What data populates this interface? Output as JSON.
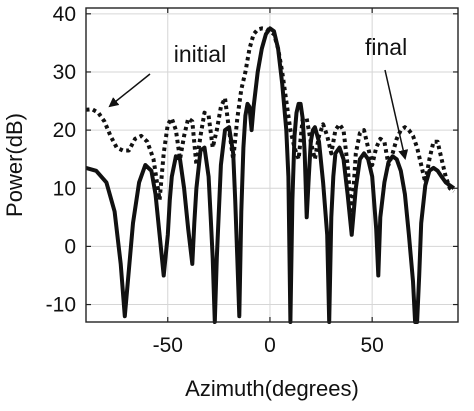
{
  "chart_data": {
    "type": "line",
    "title": "",
    "xlabel": "Azimuth(degrees)",
    "ylabel": "Power(dB)",
    "xlim": [
      -90,
      92
    ],
    "ylim": [
      -13,
      41
    ],
    "xticks": [
      -50,
      0,
      50
    ],
    "yticks": [
      -10,
      0,
      10,
      20,
      30,
      40
    ],
    "xtick_labels": [
      "-50",
      "0",
      "50"
    ],
    "ytick_labels": [
      "-10",
      "0",
      "10",
      "20",
      "30",
      "40"
    ],
    "grid": true,
    "legend": "none",
    "annotations": [
      {
        "text": "initial",
        "series": "dotted",
        "arrow_to": [
          -85,
          23
        ]
      },
      {
        "text": "final",
        "series": "solid",
        "arrow_to": [
          63,
          15
        ]
      }
    ],
    "series": [
      {
        "style": "dotted",
        "color": "#111111",
        "x": [
          -90,
          -87,
          -84,
          -81,
          -78,
          -75,
          -72,
          -69,
          -66,
          -63,
          -60,
          -57,
          -54,
          -52,
          -50,
          -48,
          -46,
          -44,
          -42,
          -40,
          -38,
          -36,
          -34,
          -32,
          -30,
          -28,
          -26,
          -24,
          -22,
          -20,
          -18,
          -16,
          -14,
          -12,
          -10,
          -8,
          -6,
          -4,
          -2,
          0,
          2,
          4,
          6,
          8,
          10,
          12,
          14,
          16,
          18,
          20,
          22,
          24,
          26,
          28,
          30,
          32,
          34,
          36,
          38,
          40,
          42,
          44,
          46,
          48,
          50,
          52,
          54,
          56,
          58,
          60,
          62,
          64,
          66,
          68,
          70,
          72,
          74,
          76,
          78,
          80,
          82,
          84,
          86,
          88,
          90
        ],
        "y": [
          23.5,
          23.6,
          23,
          21.5,
          19,
          17,
          16.5,
          16.5,
          18.5,
          19,
          18,
          15,
          8,
          16,
          21,
          22,
          20,
          15,
          19,
          22,
          21.5,
          14,
          19,
          23,
          22.5,
          17,
          20,
          24,
          25.5,
          20,
          15,
          22,
          27,
          30,
          34,
          36.5,
          37.3,
          37.5,
          37.4,
          37,
          36.5,
          34,
          30,
          25,
          20,
          17,
          15,
          22,
          22,
          18,
          15,
          19,
          21,
          19,
          16,
          20,
          21,
          20,
          14,
          5,
          16,
          19.5,
          20,
          17,
          14,
          17,
          18.5,
          18,
          14,
          16,
          18.5,
          20,
          20.5,
          20,
          19,
          17,
          14,
          11,
          15,
          18,
          18,
          15,
          12,
          10,
          9.5
        ]
      },
      {
        "style": "solid",
        "color": "#111111",
        "x": [
          -90,
          -85,
          -80,
          -76,
          -73,
          -71,
          -69,
          -67,
          -64,
          -61,
          -58,
          -56,
          -54,
          -52,
          -50,
          -49,
          -48,
          -46,
          -44,
          -42,
          -40,
          -38,
          -37,
          -36,
          -34,
          -32,
          -30,
          -29,
          -28,
          -27,
          -26,
          -24,
          -22,
          -20,
          -18,
          -17,
          -16,
          -15,
          -14,
          -13,
          -12,
          -11,
          -10,
          -9,
          -8,
          -6,
          -4,
          -2,
          0,
          2,
          4,
          6,
          8,
          9,
          10,
          11,
          12,
          13,
          14,
          15,
          16,
          17,
          18,
          19,
          20,
          21,
          22,
          24,
          26,
          28,
          29,
          30,
          31,
          32,
          34,
          36,
          38,
          40,
          42,
          44,
          46,
          48,
          50,
          52,
          53,
          54,
          56,
          58,
          60,
          62,
          64,
          66,
          68,
          70,
          71,
          72,
          73,
          74,
          76,
          78,
          80,
          82,
          84,
          86,
          88,
          90
        ],
        "y": [
          13.5,
          13,
          11,
          6,
          -3,
          -12,
          -4,
          4,
          11,
          14,
          13,
          9,
          2,
          -5,
          2,
          8,
          12,
          15.5,
          15,
          10,
          3,
          -3,
          4,
          10,
          16.5,
          17,
          12,
          5,
          -2,
          -13,
          -2,
          14,
          20,
          20.5,
          16,
          8,
          -2,
          -12,
          6,
          17,
          22.5,
          24.5,
          24,
          20,
          24,
          30,
          34,
          36.5,
          37.5,
          37,
          34,
          28,
          20,
          12,
          -13,
          8,
          19,
          23,
          24.5,
          24.5,
          22,
          16,
          5,
          12,
          18,
          20,
          20.5,
          18,
          11,
          2,
          -13,
          5,
          12,
          16,
          17,
          15,
          9,
          2,
          10,
          15,
          16,
          15,
          12,
          3,
          -5,
          5,
          11,
          14.5,
          15.5,
          15,
          13,
          9,
          2,
          -6,
          -13,
          -13,
          -5,
          4,
          10.5,
          13,
          13.5,
          13,
          12,
          11,
          10.5,
          10
        ]
      }
    ]
  }
}
